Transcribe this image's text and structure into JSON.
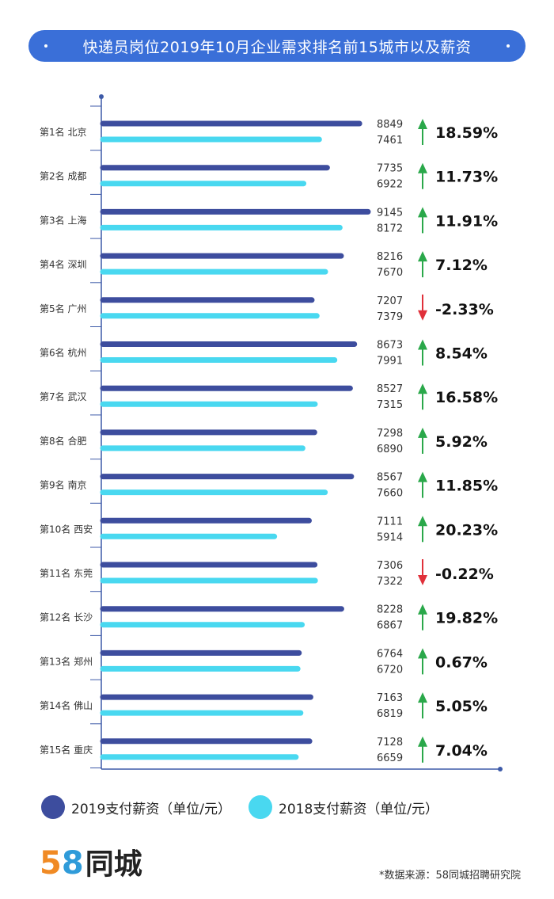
{
  "title": "快递员岗位2019年10月企业需求排名前15城市以及薪资",
  "legend": {
    "series_2019": "2019支付薪资（单位/元）",
    "series_2018": "2018支付薪资（单位/元）"
  },
  "colors": {
    "series_2019": "#3d4d9e",
    "series_2018": "#49d8f0",
    "up": "#2aa84a",
    "down": "#e0303a",
    "title_bg": "#3a6fd8"
  },
  "logo": {
    "five": "5",
    "eight": "8",
    "brand": "同城"
  },
  "source": "*数据来源：58同城招聘研究院",
  "chart_data": {
    "type": "bar",
    "orientation": "horizontal",
    "title": "快递员岗位2019年10月企业需求排名前15城市以及薪资",
    "categories": [
      "第1名 北京",
      "第2名 成都",
      "第3名 上海",
      "第4名 深圳",
      "第5名 广州",
      "第6名 杭州",
      "第7名 武汉",
      "第8名 合肥",
      "第9名 南京",
      "第10名 西安",
      "第11名 东莞",
      "第12名 长沙",
      "第13名 郑州",
      "第14名 佛山",
      "第15名 重庆"
    ],
    "series": [
      {
        "name": "2019支付薪资（单位/元）",
        "values": [
          8849,
          7735,
          9145,
          8216,
          7207,
          8673,
          8527,
          7298,
          8567,
          7111,
          7306,
          8228,
          6764,
          7163,
          7128
        ]
      },
      {
        "name": "2018支付薪资（单位/元）",
        "values": [
          7461,
          6922,
          8172,
          7670,
          7379,
          7991,
          7315,
          6890,
          7660,
          5914,
          7322,
          6867,
          6720,
          6819,
          6659
        ]
      }
    ],
    "change": [
      "18.59%",
      "11.73%",
      "11.91%",
      "7.12%",
      "-2.33%",
      "8.54%",
      "16.58%",
      "5.92%",
      "11.85%",
      "20.23%",
      "-0.22%",
      "19.82%",
      "0.67%",
      "5.05%",
      "7.04%"
    ],
    "change_direction": [
      "up",
      "up",
      "up",
      "up",
      "down",
      "up",
      "up",
      "up",
      "up",
      "up",
      "down",
      "up",
      "up",
      "up",
      "up"
    ],
    "xlim": [
      0,
      9145
    ],
    "legend_position": "bottom"
  }
}
